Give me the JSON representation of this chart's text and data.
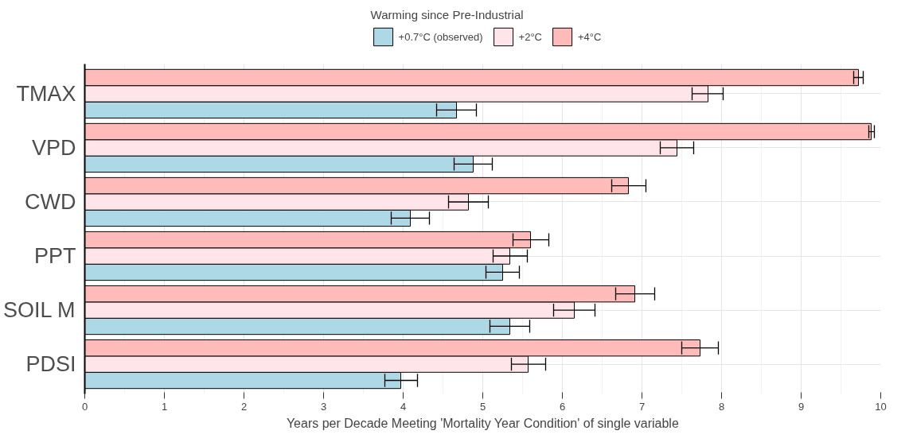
{
  "chart_data": {
    "type": "bar",
    "orientation": "horizontal",
    "xlabel": "Years per Decade Meeting 'Mortality Year Condition' of single variable",
    "legend_title": "Warming since Pre-Industrial",
    "legend": "top",
    "grid": true,
    "categories": [
      "TMAX",
      "VPD",
      "CWD",
      "PPT",
      "SOIL M",
      "PDSI"
    ],
    "xlim": [
      0,
      10
    ],
    "xticks": [
      0,
      1,
      2,
      3,
      4,
      5,
      6,
      7,
      8,
      9,
      10
    ],
    "series": [
      {
        "name": "+0.7°C (observed)",
        "color": "#add8e6",
        "values": [
          4.67,
          4.88,
          4.09,
          5.25,
          5.34,
          3.97
        ],
        "errors": [
          [
            4.42,
            4.92
          ],
          [
            4.64,
            5.12
          ],
          [
            3.85,
            4.33
          ],
          [
            5.04,
            5.46
          ],
          [
            5.09,
            5.59
          ],
          [
            3.77,
            4.18
          ]
        ]
      },
      {
        "name": "+2°C",
        "color": "#ffe4e9",
        "values": [
          7.83,
          7.44,
          4.82,
          5.34,
          6.15,
          5.57
        ],
        "errors": [
          [
            7.63,
            8.02
          ],
          [
            7.23,
            7.65
          ],
          [
            4.57,
            5.07
          ],
          [
            5.13,
            5.56
          ],
          [
            5.89,
            6.41
          ],
          [
            5.36,
            5.79
          ]
        ]
      },
      {
        "name": "+4°C",
        "color": "#ffbaba",
        "values": [
          9.72,
          9.88,
          6.83,
          5.6,
          6.91,
          7.73
        ],
        "errors": [
          [
            9.66,
            9.78
          ],
          [
            9.85,
            9.92
          ],
          [
            6.62,
            7.05
          ],
          [
            5.38,
            5.83
          ],
          [
            6.67,
            7.16
          ],
          [
            7.5,
            7.96
          ]
        ]
      }
    ]
  }
}
